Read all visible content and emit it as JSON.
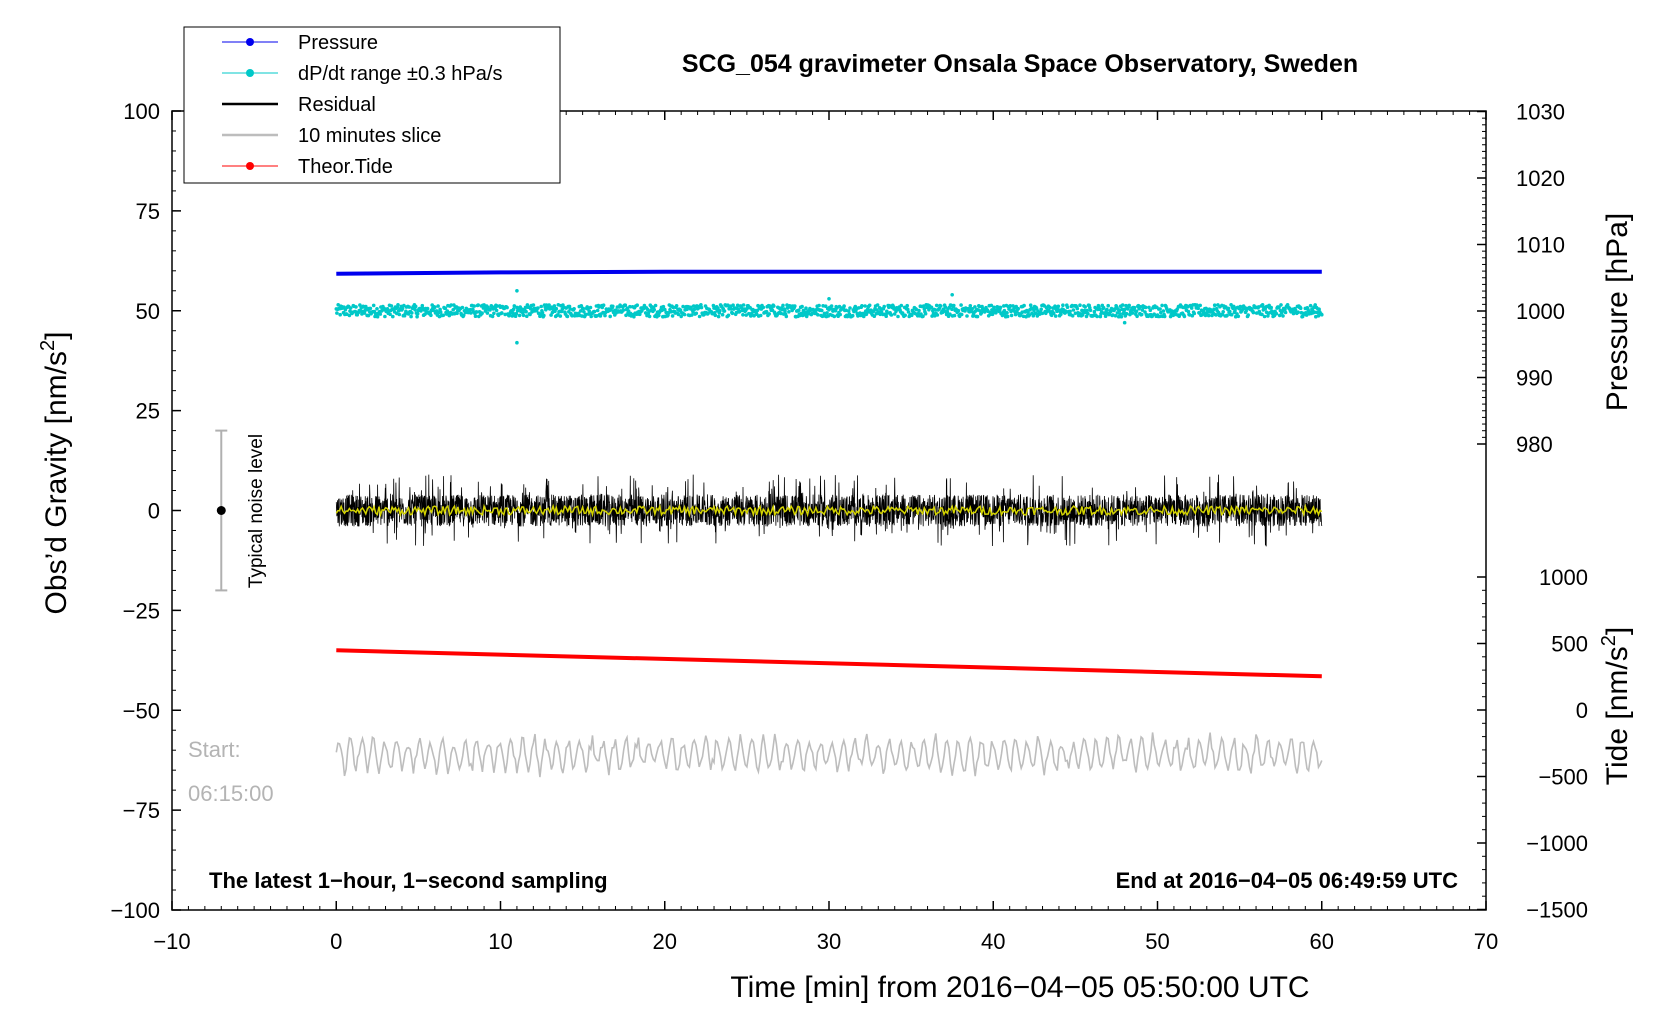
{
  "colors": {
    "pressure": "#0000ee",
    "dpdt": "#00c8c8",
    "residual": "#000000",
    "slice": "#bdbdbd",
    "tide": "#ff0000",
    "smooth": "#d4d400"
  },
  "chart_data": {
    "type": "line",
    "title": "SCG_054 gravimeter Onsala Space Observatory, Sweden",
    "xlabel": "Time [min] from 2016−04−05 05:50:00 UTC",
    "xlim": [
      -10,
      70
    ],
    "x_ticks": [
      -10,
      0,
      10,
      20,
      30,
      40,
      50,
      60,
      70
    ],
    "x_tick_labels": [
      "−10",
      "0",
      "10",
      "20",
      "30",
      "40",
      "50",
      "60",
      "70"
    ],
    "y_left": {
      "label_main": "Obs’d Gravity [nm/s",
      "label_sup": "2",
      "label_end": "]",
      "lim": [
        -100,
        100
      ],
      "ticks": [
        100,
        75,
        50,
        25,
        0,
        -25,
        -50,
        -75,
        -100
      ],
      "tick_labels": [
        "100",
        "75",
        "50",
        "25",
        "0",
        "−25",
        "−50",
        "−75",
        "−100"
      ]
    },
    "y_right_pressure": {
      "label": "Pressure [hPa]",
      "ticks": [
        1030,
        1020,
        1010,
        1000,
        990,
        980
      ],
      "tick_labels": [
        "1030",
        "1020",
        "1010",
        "1000",
        "990",
        "980"
      ],
      "map_note": "1000 hPa aligns with 50 nm/s2; 10 hPa per 16.67 nm/s2"
    },
    "y_right_tide": {
      "label_main": "Tide [nm/s",
      "label_sup": "2",
      "label_end": "]",
      "ticks": [
        1000,
        500,
        0,
        -500,
        -1000,
        -1500
      ],
      "tick_labels": [
        "1000",
        "500",
        "0",
        "−500",
        "−1000",
        "−1500"
      ]
    },
    "legend": {
      "placement": "top-left",
      "entries": [
        {
          "label": "Pressure",
          "series": "pressure",
          "marker": true
        },
        {
          "label": "dP/dt range ±0.3 hPa/s",
          "series": "dpdt",
          "marker": true
        },
        {
          "label": "Residual",
          "series": "residual",
          "marker": false
        },
        {
          "label": "10 minutes slice",
          "series": "slice",
          "marker": false
        },
        {
          "label": "Theor.Tide",
          "series": "tide",
          "marker": true
        }
      ]
    },
    "series": [
      {
        "name": "Pressure",
        "axis": "pressure_hPa",
        "x": [
          0,
          10,
          20,
          30,
          40,
          50,
          60
        ],
        "values": [
          1005.6,
          1005.8,
          1005.9,
          1005.9,
          1005.9,
          1005.9,
          1005.9
        ]
      },
      {
        "name": "dP/dt range ±0.3 hPa/s",
        "axis": "gravity_nm_s2",
        "baseline": 50,
        "spread": 1.5,
        "x_range": [
          0,
          60
        ]
      },
      {
        "name": "Residual",
        "axis": "gravity_nm_s2",
        "baseline": 0,
        "range": [
          -10,
          9
        ],
        "x_range": [
          0,
          60
        ]
      },
      {
        "name": "10 minutes slice",
        "axis": "gravity_nm_s2",
        "baseline": -61,
        "range": [
          -68,
          -54
        ],
        "x_range": [
          0,
          60
        ]
      },
      {
        "name": "Theor.Tide",
        "axis": "gravity_nm_s2",
        "x": [
          0,
          60
        ],
        "values": [
          -35,
          -41.5
        ]
      }
    ],
    "noise_bar": {
      "x": -7,
      "center": 0,
      "lo": -20,
      "hi": 20,
      "label": "Typical noise level"
    },
    "annotations": {
      "bottom_left": "The latest 1−hour, 1−second sampling",
      "bottom_right": "End at 2016−04−05 06:49:59 UTC",
      "start_label": "Start:",
      "start_time": "06:15:00"
    }
  }
}
